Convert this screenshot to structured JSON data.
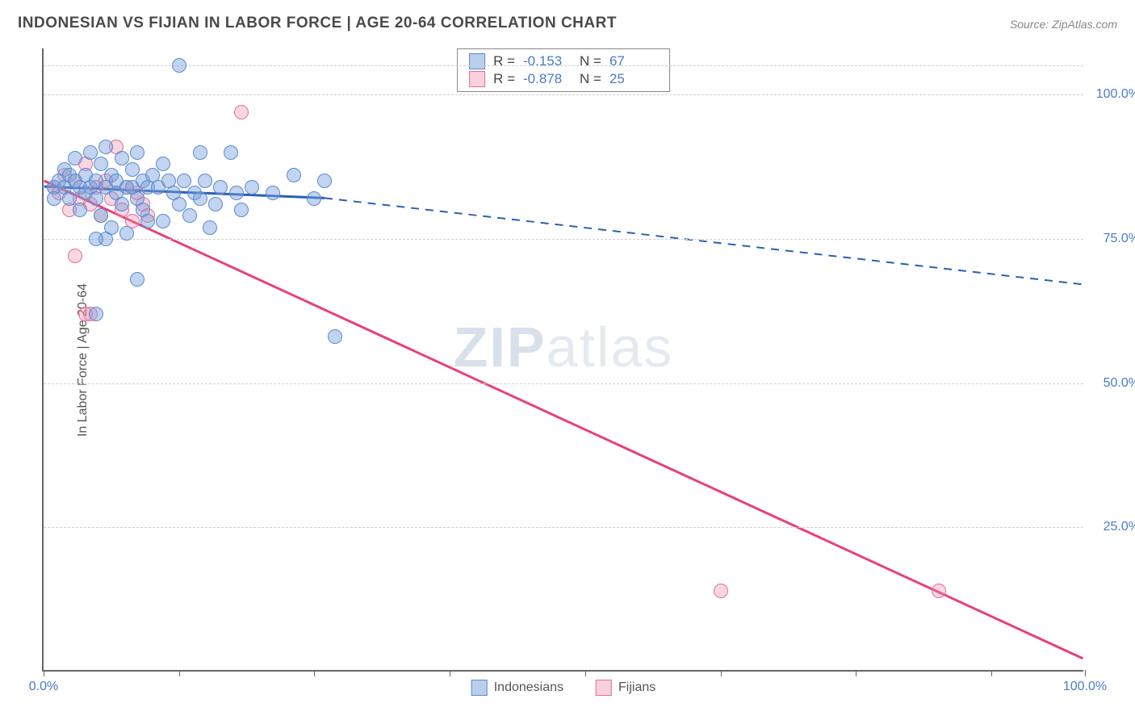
{
  "title": "INDONESIAN VS FIJIAN IN LABOR FORCE | AGE 20-64 CORRELATION CHART",
  "source": "Source: ZipAtlas.com",
  "ylabel": "In Labor Force | Age 20-64",
  "watermark_a": "ZIP",
  "watermark_b": "atlas",
  "chart": {
    "type": "scatter-correlation",
    "xlim": [
      0,
      100
    ],
    "ylim": [
      0,
      108
    ],
    "yticks": [
      25,
      50,
      75,
      100
    ],
    "ytick_labels": [
      "25.0%",
      "50.0%",
      "75.0%",
      "100.0%"
    ],
    "xtick_positions": [
      0,
      13,
      26,
      39,
      52,
      65,
      78,
      91,
      100
    ],
    "xtick_labels_shown": {
      "0": "0.0%",
      "100": "100.0%"
    },
    "background": "#ffffff",
    "grid_color": "#d0d0d0",
    "axis_color": "#666666",
    "label_color": "#4a7bc8",
    "series": {
      "indonesians": {
        "label": "Indonesians",
        "color_fill": "rgba(120,160,220,0.45)",
        "color_stroke": "#5a8bd0",
        "line_color": "#2a5fb8",
        "R": "-0.153",
        "N": "67",
        "trend_solid": {
          "x1": 0,
          "y1": 84,
          "x2": 27,
          "y2": 82
        },
        "trend_dash": {
          "x1": 27,
          "y1": 82,
          "x2": 100,
          "y2": 67
        },
        "points": [
          [
            1,
            84
          ],
          [
            1,
            82
          ],
          [
            1.5,
            85
          ],
          [
            2,
            84
          ],
          [
            2,
            87
          ],
          [
            2.5,
            86
          ],
          [
            2.5,
            82
          ],
          [
            3,
            85
          ],
          [
            3,
            89
          ],
          [
            3.5,
            84
          ],
          [
            3.5,
            80
          ],
          [
            4,
            86
          ],
          [
            4,
            83
          ],
          [
            4.5,
            90
          ],
          [
            4.5,
            84
          ],
          [
            5,
            85
          ],
          [
            5,
            82
          ],
          [
            5.5,
            88
          ],
          [
            5.5,
            79
          ],
          [
            6,
            84
          ],
          [
            6,
            91
          ],
          [
            6.5,
            86
          ],
          [
            6.5,
            77
          ],
          [
            7,
            85
          ],
          [
            7,
            83
          ],
          [
            7.5,
            89
          ],
          [
            7.5,
            81
          ],
          [
            8,
            84
          ],
          [
            8,
            76
          ],
          [
            8.5,
            87
          ],
          [
            8.5,
            84
          ],
          [
            9,
            82
          ],
          [
            9,
            90
          ],
          [
            9.5,
            85
          ],
          [
            9.5,
            80
          ],
          [
            10,
            84
          ],
          [
            10,
            78
          ],
          [
            10.5,
            86
          ],
          [
            5,
            62
          ],
          [
            11,
            84
          ],
          [
            11.5,
            88
          ],
          [
            11.5,
            78
          ],
          [
            12,
            85
          ],
          [
            6,
            75
          ],
          [
            12.5,
            83
          ],
          [
            13,
            105
          ],
          [
            13,
            81
          ],
          [
            13.5,
            85
          ],
          [
            14,
            79
          ],
          [
            14.5,
            83
          ],
          [
            15,
            90
          ],
          [
            15,
            82
          ],
          [
            15.5,
            85
          ],
          [
            16,
            77
          ],
          [
            16.5,
            81
          ],
          [
            17,
            84
          ],
          [
            18,
            90
          ],
          [
            18.5,
            83
          ],
          [
            19,
            80
          ],
          [
            20,
            84
          ],
          [
            22,
            83
          ],
          [
            24,
            86
          ],
          [
            26,
            82
          ],
          [
            27,
            85
          ],
          [
            28,
            58
          ],
          [
            9,
            68
          ],
          [
            5,
            75
          ]
        ]
      },
      "fijians": {
        "label": "Fijians",
        "color_fill": "rgba(235,140,170,0.35)",
        "color_stroke": "#e86a9a",
        "line_color": "#e8407a",
        "R": "-0.878",
        "N": "25",
        "trend_solid": {
          "x1": 0,
          "y1": 85,
          "x2": 100,
          "y2": 2
        },
        "points": [
          [
            1,
            84
          ],
          [
            1.5,
            83
          ],
          [
            2,
            86
          ],
          [
            2.5,
            80
          ],
          [
            3,
            85
          ],
          [
            3.5,
            82
          ],
          [
            4,
            88
          ],
          [
            4.5,
            81
          ],
          [
            5,
            84
          ],
          [
            5.5,
            79
          ],
          [
            6,
            85
          ],
          [
            6.5,
            82
          ],
          [
            7,
            91
          ],
          [
            7.5,
            80
          ],
          [
            8,
            84
          ],
          [
            8.5,
            78
          ],
          [
            9,
            83
          ],
          [
            9.5,
            81
          ],
          [
            10,
            79
          ],
          [
            3,
            72
          ],
          [
            4,
            62
          ],
          [
            4.5,
            62
          ],
          [
            19,
            97
          ],
          [
            65,
            14
          ],
          [
            86,
            14
          ]
        ]
      }
    },
    "stats_box": {
      "rows": [
        {
          "swatch": "blue",
          "R": "-0.153",
          "N": "67"
        },
        {
          "swatch": "pink",
          "R": "-0.878",
          "N": "25"
        }
      ]
    },
    "legend": [
      {
        "swatch": "blue",
        "label": "Indonesians"
      },
      {
        "swatch": "pink",
        "label": "Fijians"
      }
    ]
  }
}
